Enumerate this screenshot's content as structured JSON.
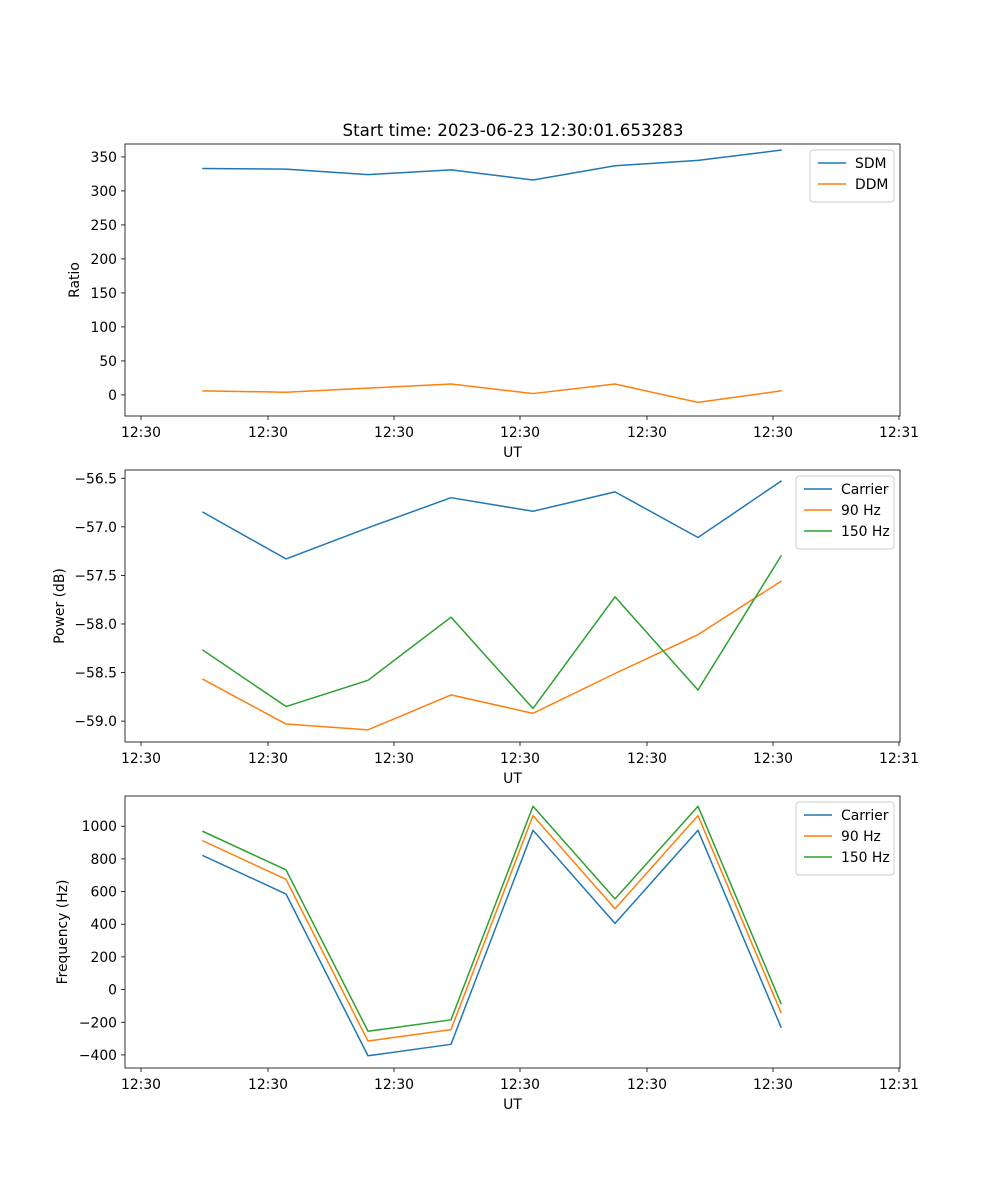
{
  "figure": {
    "title": "Start time: 2023-06-23 12:30:01.653283"
  },
  "chart_data": [
    {
      "type": "line",
      "title": "Start time: 2023-06-23 12:30:01.653283",
      "xlabel": "UT",
      "ylabel": "Ratio",
      "x_tick_labels": [
        "12:30",
        "12:30",
        "12:30",
        "12:30",
        "12:30",
        "12:30",
        "12:31"
      ],
      "y_ticks": [
        0,
        50,
        100,
        150,
        200,
        250,
        300,
        350
      ],
      "y_tick_labels": [
        "0",
        "50",
        "100",
        "150",
        "200",
        "250",
        "300",
        "350"
      ],
      "ylim": [
        -31,
        369
      ],
      "grid": false,
      "legend_position": "upper right",
      "series": [
        {
          "name": "SDM",
          "color": "#1f77b4",
          "values": [
            333,
            332,
            324,
            331,
            316,
            337,
            345,
            360
          ]
        },
        {
          "name": "DDM",
          "color": "#ff7f0e",
          "values": [
            6,
            4,
            10,
            16,
            2,
            16,
            -11,
            6
          ]
        }
      ]
    },
    {
      "type": "line",
      "xlabel": "UT",
      "ylabel": "Power (dB)",
      "x_tick_labels": [
        "12:30",
        "12:30",
        "12:30",
        "12:30",
        "12:30",
        "12:30",
        "12:31"
      ],
      "y_ticks": [
        -59.0,
        -58.5,
        -58.0,
        -57.5,
        -57.0,
        -56.5
      ],
      "y_tick_labels": [
        "−59.0",
        "−58.5",
        "−58.0",
        "−57.5",
        "−57.0",
        "−56.5"
      ],
      "ylim": [
        -59.215,
        -56.415
      ],
      "grid": false,
      "legend_position": "upper right",
      "series": [
        {
          "name": "Carrier",
          "color": "#1f77b4",
          "values": [
            -56.85,
            -57.33,
            -57.01,
            -56.7,
            -56.84,
            -56.64,
            -57.11,
            -56.53
          ]
        },
        {
          "name": "90 Hz",
          "color": "#ff7f0e",
          "values": [
            -58.57,
            -59.03,
            -59.09,
            -58.73,
            -58.92,
            -58.51,
            -58.11,
            -57.56
          ]
        },
        {
          "name": "150 Hz",
          "color": "#2ca02c",
          "values": [
            -58.27,
            -58.85,
            -58.58,
            -57.93,
            -58.87,
            -57.72,
            -58.68,
            -57.3
          ]
        }
      ]
    },
    {
      "type": "line",
      "xlabel": "UT",
      "ylabel": "Frequency (Hz)",
      "x_tick_labels": [
        "12:30",
        "12:30",
        "12:30",
        "12:30",
        "12:30",
        "12:30",
        "12:31"
      ],
      "y_ticks": [
        -400,
        -200,
        0,
        200,
        400,
        600,
        800,
        1000
      ],
      "y_tick_labels": [
        "−400",
        "−200",
        "0",
        "200",
        "400",
        "600",
        "800",
        "1000"
      ],
      "ylim": [
        -480,
        1185
      ],
      "grid": false,
      "legend_position": "upper right",
      "series": [
        {
          "name": "Carrier",
          "color": "#1f77b4",
          "values": [
            820,
            585,
            -405,
            -335,
            975,
            405,
            975,
            -230
          ]
        },
        {
          "name": "90 Hz",
          "color": "#ff7f0e",
          "values": [
            910,
            675,
            -315,
            -245,
            1065,
            495,
            1065,
            -140
          ]
        },
        {
          "name": "150 Hz",
          "color": "#2ca02c",
          "values": [
            968,
            733,
            -255,
            -185,
            1122,
            555,
            1122,
            -85
          ]
        }
      ]
    }
  ]
}
